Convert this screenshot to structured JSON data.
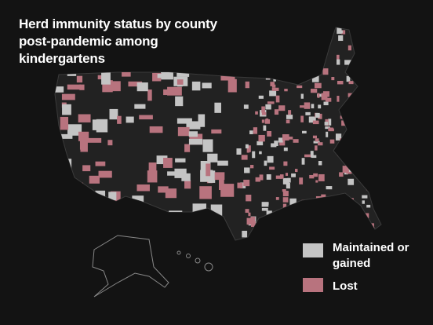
{
  "title": "Herd immunity status by county post-pandemic among kindergartens",
  "legend": [
    {
      "label": "Maintained or gained",
      "color": "#c4c4c4"
    },
    {
      "label": "Lost",
      "color": "#b8737e"
    }
  ],
  "land_color": "#222222",
  "background": "#131313"
}
